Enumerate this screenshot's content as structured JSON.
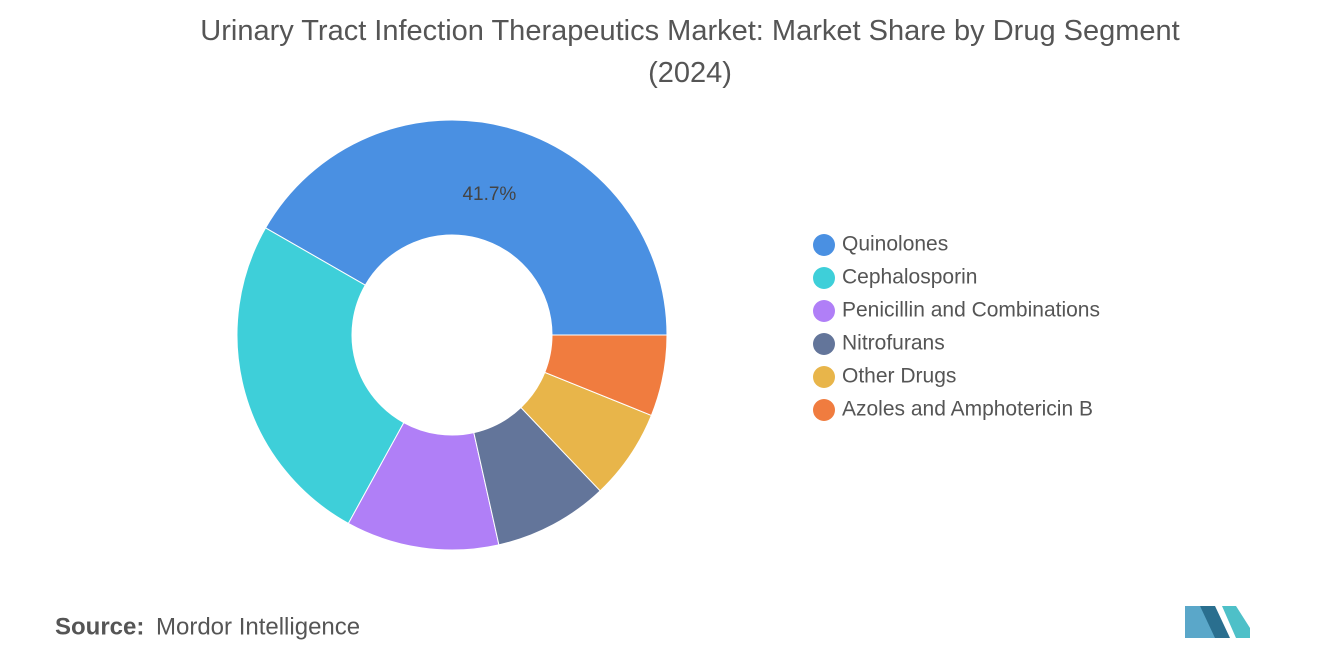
{
  "chart_data": {
    "type": "donut",
    "title": "Urinary Tract Infection Therapeutics Market: Market Share by Drug Segment (2024)",
    "categories": [
      "Quinolones",
      "Cephalosporin",
      "Penicillin and Combinations",
      "Nitrofurans",
      "Other Drugs",
      "Azoles and Amphotericin B"
    ],
    "values": [
      41.7,
      25.3,
      11.5,
      8.6,
      6.8,
      6.1
    ],
    "value_labels": [
      "41.7%",
      null,
      null,
      null,
      null,
      null
    ],
    "colors": [
      "#4a90e2",
      "#3ecfd9",
      "#b07ff7",
      "#63759a",
      "#e8b54a",
      "#f07c3f"
    ],
    "legend": "right",
    "source_label": "Source:",
    "source": "Mordor Intelligence"
  }
}
